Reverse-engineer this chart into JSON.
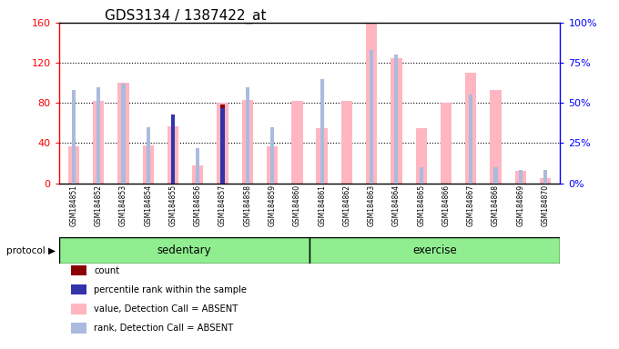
{
  "title": "GDS3134 / 1387422_at",
  "samples": [
    "GSM184851",
    "GSM184852",
    "GSM184853",
    "GSM184854",
    "GSM184855",
    "GSM184856",
    "GSM184857",
    "GSM184858",
    "GSM184859",
    "GSM184860",
    "GSM184861",
    "GSM184862",
    "GSM184863",
    "GSM184864",
    "GSM184865",
    "GSM184866",
    "GSM184867",
    "GSM184868",
    "GSM184869",
    "GSM184870"
  ],
  "count_values": [
    0,
    0,
    0,
    0,
    57,
    0,
    78,
    0,
    0,
    0,
    0,
    0,
    0,
    0,
    0,
    0,
    0,
    0,
    0,
    0
  ],
  "rank_pct": [
    0,
    0,
    0,
    0,
    43,
    0,
    47,
    0,
    0,
    0,
    0,
    0,
    0,
    0,
    0,
    0,
    0,
    0,
    0,
    0
  ],
  "absent_value": [
    37,
    82,
    100,
    38,
    57,
    18,
    80,
    83,
    37,
    82,
    55,
    82,
    160,
    125,
    55,
    80,
    110,
    93,
    12,
    5
  ],
  "absent_rank_pct": [
    58,
    60,
    62,
    35,
    0,
    22,
    0,
    60,
    35,
    0,
    65,
    0,
    83,
    80,
    10,
    0,
    55,
    10,
    8,
    8
  ],
  "protocol_groups": [
    {
      "label": "sedentary",
      "start": 0,
      "end": 10
    },
    {
      "label": "exercise",
      "start": 10,
      "end": 20
    }
  ],
  "ylim_left": [
    0,
    160
  ],
  "ylim_right": [
    0,
    100
  ],
  "yticks_left": [
    0,
    40,
    80,
    120,
    160
  ],
  "yticks_right": [
    0,
    25,
    50,
    75,
    100
  ],
  "ytick_labels_right": [
    "0%",
    "25%",
    "50%",
    "75%",
    "100%"
  ],
  "color_count": "#8B0000",
  "color_rank": "#3333AA",
  "color_absent_value": "#FFB6C1",
  "color_absent_rank": "#AABBDD",
  "color_xtick_bg": "#CCCCCC",
  "color_protocol_bg": "#90EE90",
  "title_fontsize": 11,
  "protocol_label": "protocol"
}
